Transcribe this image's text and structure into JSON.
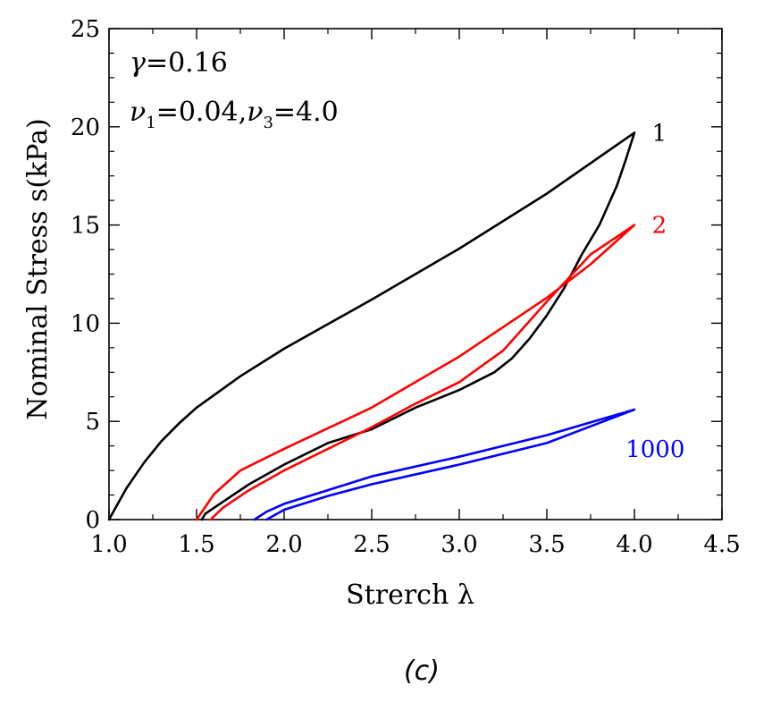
{
  "chart_data": {
    "type": "line",
    "title": "",
    "xlabel": "Strerch λ",
    "ylabel": "Nominal Stress s(kPa)",
    "xlim": [
      1.0,
      4.5
    ],
    "ylim": [
      0,
      25
    ],
    "x_ticks": [
      "1.0",
      "1.5",
      "2.0",
      "2.5",
      "3.0",
      "3.5",
      "4.0",
      "4.5"
    ],
    "y_ticks": [
      "0",
      "5",
      "10",
      "15",
      "20",
      "25"
    ],
    "grid": false,
    "annotations": {
      "gamma_symbol": "γ",
      "gamma_text": "=0.16",
      "nu_symbol": "ν",
      "nu1_sub": "1",
      "nu1_text": "=0.04,",
      "nu3_sub": "3",
      "nu3_text": "=4.0"
    },
    "series": [
      {
        "name": "1",
        "color": "#000000",
        "points": [
          [
            1.0,
            0.0
          ],
          [
            1.05,
            0.8
          ],
          [
            1.1,
            1.6
          ],
          [
            1.2,
            2.9
          ],
          [
            1.3,
            4.0
          ],
          [
            1.4,
            4.9
          ],
          [
            1.5,
            5.7
          ],
          [
            1.75,
            7.3
          ],
          [
            2.0,
            8.7
          ],
          [
            2.5,
            11.2
          ],
          [
            3.0,
            13.8
          ],
          [
            3.5,
            16.6
          ],
          [
            4.0,
            19.7
          ],
          [
            3.95,
            18.3
          ],
          [
            3.9,
            17.0
          ],
          [
            3.8,
            15.0
          ],
          [
            3.7,
            13.5
          ],
          [
            3.6,
            11.8
          ],
          [
            3.5,
            10.4
          ],
          [
            3.4,
            9.2
          ],
          [
            3.3,
            8.2
          ],
          [
            3.2,
            7.5
          ],
          [
            3.0,
            6.6
          ],
          [
            2.75,
            5.7
          ],
          [
            2.5,
            4.6
          ],
          [
            2.25,
            3.9
          ],
          [
            2.0,
            2.8
          ],
          [
            1.8,
            1.8
          ],
          [
            1.65,
            0.9
          ],
          [
            1.55,
            0.3
          ],
          [
            1.53,
            0.0
          ]
        ]
      },
      {
        "name": "2",
        "color": "#ff0000",
        "points": [
          [
            1.5,
            0.0
          ],
          [
            1.6,
            1.3
          ],
          [
            1.75,
            2.5
          ],
          [
            2.0,
            3.6
          ],
          [
            2.5,
            5.7
          ],
          [
            3.0,
            8.3
          ],
          [
            3.5,
            11.3
          ],
          [
            3.75,
            13.0
          ],
          [
            4.0,
            15.0
          ],
          [
            3.75,
            13.5
          ],
          [
            3.5,
            11.1
          ],
          [
            3.25,
            8.6
          ],
          [
            3.0,
            7.0
          ],
          [
            2.75,
            5.9
          ],
          [
            2.5,
            4.7
          ],
          [
            2.25,
            3.6
          ],
          [
            2.0,
            2.5
          ],
          [
            1.8,
            1.5
          ],
          [
            1.65,
            0.6
          ],
          [
            1.58,
            0.0
          ]
        ]
      },
      {
        "name": "1000",
        "color": "#0000ff",
        "points": [
          [
            1.83,
            0.0
          ],
          [
            1.9,
            0.4
          ],
          [
            2.0,
            0.8
          ],
          [
            2.25,
            1.5
          ],
          [
            2.5,
            2.2
          ],
          [
            3.0,
            3.2
          ],
          [
            3.5,
            4.3
          ],
          [
            4.0,
            5.6
          ],
          [
            3.5,
            3.9
          ],
          [
            3.0,
            2.8
          ],
          [
            2.5,
            1.8
          ],
          [
            2.25,
            1.2
          ],
          [
            2.0,
            0.5
          ],
          [
            1.9,
            0.0
          ]
        ]
      }
    ],
    "series_labels": [
      {
        "text": "1",
        "x": 4.1,
        "y": 19.7,
        "color": "#000000"
      },
      {
        "text": "2",
        "x": 4.1,
        "y": 15.0,
        "color": "#ff0000"
      },
      {
        "text": "1000",
        "x": 3.95,
        "y": 3.6,
        "color": "#0000ff"
      }
    ]
  },
  "caption": "(c)"
}
